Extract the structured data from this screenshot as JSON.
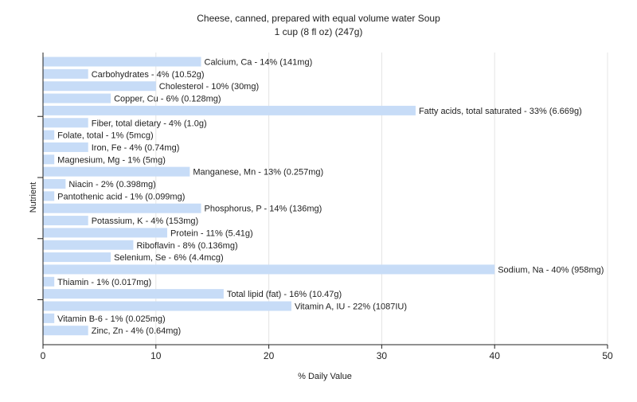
{
  "chart_data": {
    "type": "bar",
    "orientation": "horizontal",
    "title": "Cheese, canned, prepared with equal volume water Soup",
    "subtitle": "1 cup (8 fl oz) (247g)",
    "xlabel": "% Daily Value",
    "ylabel": "Nutrient",
    "xlim": [
      0,
      50
    ],
    "xticks": [
      0,
      10,
      20,
      30,
      40,
      50
    ],
    "grid": true,
    "bar_color": "#c7dcf7",
    "categories": [
      "Calcium, Ca",
      "Carbohydrates",
      "Cholesterol",
      "Copper, Cu",
      "Fatty acids, total saturated",
      "Fiber, total dietary",
      "Folate, total",
      "Iron, Fe",
      "Magnesium, Mg",
      "Manganese, Mn",
      "Niacin",
      "Pantothenic acid",
      "Phosphorus, P",
      "Potassium, K",
      "Protein",
      "Riboflavin",
      "Selenium, Se",
      "Sodium, Na",
      "Thiamin",
      "Total lipid (fat)",
      "Vitamin A, IU",
      "Vitamin B-6",
      "Zinc, Zn"
    ],
    "values": [
      14,
      4,
      10,
      6,
      33,
      4,
      1,
      4,
      1,
      13,
      2,
      1,
      14,
      4,
      11,
      8,
      6,
      40,
      1,
      16,
      22,
      1,
      4
    ],
    "labels": [
      "Calcium, Ca - 14% (141mg)",
      "Carbohydrates - 4% (10.52g)",
      "Cholesterol - 10% (30mg)",
      "Copper, Cu - 6% (0.128mg)",
      "Fatty acids, total saturated - 33% (6.669g)",
      "Fiber, total dietary - 4% (1.0g)",
      "Folate, total - 1% (5mcg)",
      "Iron, Fe - 4% (0.74mg)",
      "Magnesium, Mg - 1% (5mg)",
      "Manganese, Mn - 13% (0.257mg)",
      "Niacin - 2% (0.398mg)",
      "Pantothenic acid - 1% (0.099mg)",
      "Phosphorus, P - 14% (136mg)",
      "Potassium, K - 4% (153mg)",
      "Protein - 11% (5.41g)",
      "Riboflavin - 8% (0.136mg)",
      "Selenium, Se - 6% (4.4mcg)",
      "Sodium, Na - 40% (958mg)",
      "Thiamin - 1% (0.017mg)",
      "Total lipid (fat) - 16% (10.47g)",
      "Vitamin A, IU - 22% (1087IU)",
      "Vitamin B-6 - 1% (0.025mg)",
      "Zinc, Zn - 4% (0.64mg)"
    ]
  }
}
